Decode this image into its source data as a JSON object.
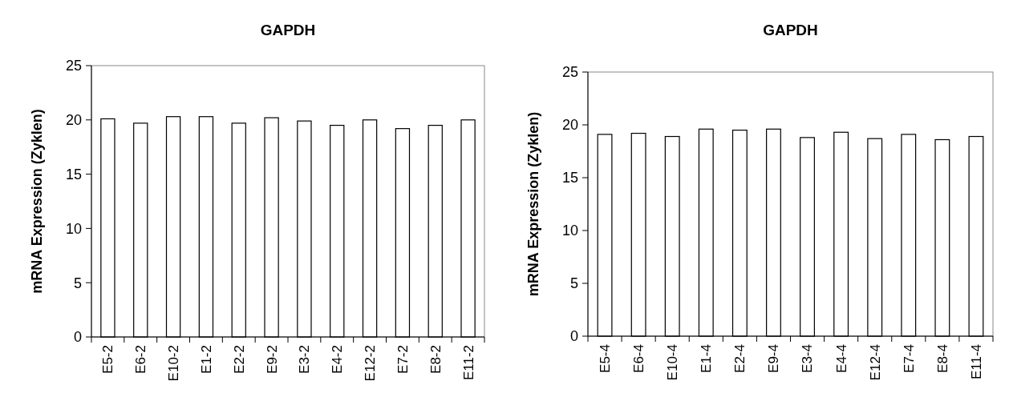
{
  "chart_data": [
    {
      "type": "bar",
      "title": "GAPDH",
      "ylabel": "mRNA Expression (Zyklen)",
      "categories": [
        "E5-2",
        "E6-2",
        "E10-2",
        "E1-2",
        "E2-2",
        "E9-2",
        "E3-2",
        "E4-2",
        "E12-2",
        "E7-2",
        "E8-2",
        "E11-2"
      ],
      "values": [
        20.1,
        19.7,
        20.3,
        20.3,
        19.7,
        20.2,
        19.9,
        19.5,
        20.0,
        19.2,
        19.5,
        20.0
      ],
      "color": "#ffffff",
      "ylim": [
        0,
        25
      ],
      "yticks": [
        0,
        5,
        10,
        15,
        20,
        25
      ]
    },
    {
      "type": "bar",
      "title": "GAPDH",
      "ylabel": "mRNA Expression (Zyklen)",
      "categories": [
        "E5-4",
        "E6-4",
        "E10-4",
        "E1-4",
        "E2-4",
        "E9-4",
        "E3-4",
        "E4-4",
        "E12-4",
        "E7-4",
        "E8-4",
        "E11-4"
      ],
      "values": [
        19.1,
        19.2,
        18.9,
        19.6,
        19.5,
        19.6,
        18.8,
        19.3,
        18.7,
        19.1,
        18.6,
        18.9
      ],
      "color": "#ffffff",
      "ylim": [
        0,
        25
      ],
      "yticks": [
        0,
        5,
        10,
        15,
        20,
        25
      ]
    }
  ]
}
